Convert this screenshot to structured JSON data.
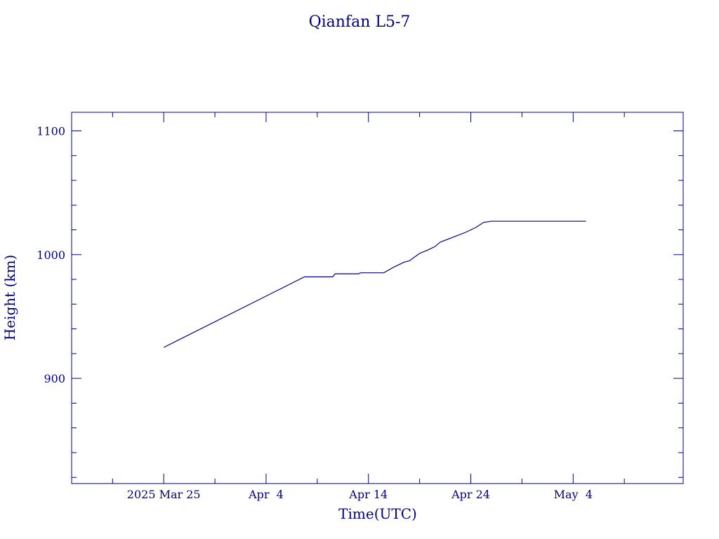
{
  "chart_data": {
    "type": "line",
    "title": "Qianfan L5-7",
    "xlabel": "Time(UTC)",
    "ylabel": "Height (km)",
    "x_unit": "date (2025, UTC)",
    "xlim": [
      "2025-03-16",
      "2025-05-14T18:00"
    ],
    "ylim": [
      815,
      1115
    ],
    "x_ticks": [
      {
        "date": "2025-03-25",
        "label": "2025 Mar 25"
      },
      {
        "date": "2025-04-04",
        "label": "Apr  4"
      },
      {
        "date": "2025-04-14",
        "label": "Apr 14"
      },
      {
        "date": "2025-04-24",
        "label": "Apr 24"
      },
      {
        "date": "2025-05-04",
        "label": "May  4"
      }
    ],
    "x_minor_ticks": [
      "2025-03-20",
      "2025-03-30",
      "2025-04-09",
      "2025-04-19",
      "2025-04-29",
      "2025-05-09"
    ],
    "y_ticks": [
      {
        "value": 900,
        "label": "900"
      },
      {
        "value": 1000,
        "label": "1000"
      },
      {
        "value": 1100,
        "label": "1100"
      }
    ],
    "y_minor_ticks": [
      820,
      840,
      860,
      880,
      920,
      940,
      960,
      980,
      1020,
      1040,
      1060,
      1080
    ],
    "grid": false,
    "legend": "none",
    "series": [
      {
        "color": "#000080",
        "points": [
          {
            "x": "2025-03-25",
            "y": 925
          },
          {
            "x": "2025-04-07T18:00",
            "y": 982
          },
          {
            "x": "2025-04-10T12:00",
            "y": 982
          },
          {
            "x": "2025-04-10T18:00",
            "y": 984.5
          },
          {
            "x": "2025-04-13",
            "y": 984.5
          },
          {
            "x": "2025-04-13T06:00",
            "y": 985.3
          },
          {
            "x": "2025-04-15T12:00",
            "y": 985.3
          },
          {
            "x": "2025-04-16T12:00",
            "y": 990
          },
          {
            "x": "2025-04-17T12:00",
            "y": 994
          },
          {
            "x": "2025-04-18",
            "y": 995
          },
          {
            "x": "2025-04-19",
            "y": 1001
          },
          {
            "x": "2025-04-19T18:00",
            "y": 1003.5
          },
          {
            "x": "2025-04-20T12:00",
            "y": 1006.5
          },
          {
            "x": "2025-04-21",
            "y": 1010
          },
          {
            "x": "2025-04-22T06:00",
            "y": 1014
          },
          {
            "x": "2025-04-23T12:00",
            "y": 1018
          },
          {
            "x": "2025-04-24T12:00",
            "y": 1022
          },
          {
            "x": "2025-04-25T06:00",
            "y": 1026
          },
          {
            "x": "2025-04-26",
            "y": 1027
          },
          {
            "x": "2025-05-05T06:00",
            "y": 1027
          }
        ]
      }
    ]
  }
}
